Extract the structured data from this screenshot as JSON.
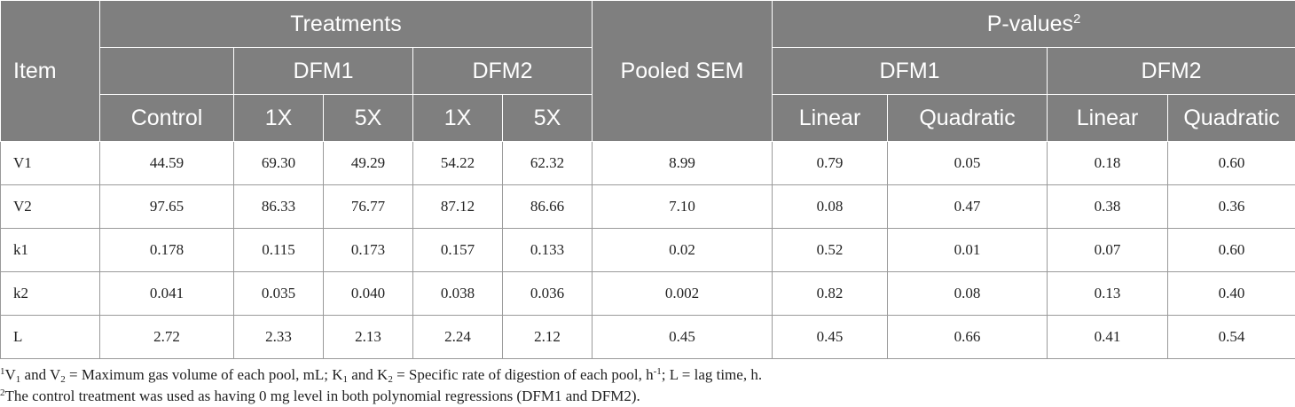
{
  "header": {
    "item": "Item",
    "treatments": "Treatments",
    "pooled_sem": "Pooled SEM",
    "pvalues": "P-values",
    "pvalues_sup": "2",
    "dfm1": "DFM1",
    "dfm2": "DFM2",
    "control": "Control",
    "x1": "1X",
    "x5": "5X",
    "linear": "Linear",
    "quadratic": "Quadratic"
  },
  "rows": [
    {
      "item": "V1",
      "control": "44.59",
      "dfm1_1x": "69.30",
      "dfm1_5x": "49.29",
      "dfm2_1x": "54.22",
      "dfm2_5x": "62.32",
      "sem": "8.99",
      "p_dfm1_lin": "0.79",
      "p_dfm1_quad": "0.05",
      "p_dfm2_lin": "0.18",
      "p_dfm2_quad": "0.60"
    },
    {
      "item": "V2",
      "control": "97.65",
      "dfm1_1x": "86.33",
      "dfm1_5x": "76.77",
      "dfm2_1x": "87.12",
      "dfm2_5x": "86.66",
      "sem": "7.10",
      "p_dfm1_lin": "0.08",
      "p_dfm1_quad": "0.47",
      "p_dfm2_lin": "0.38",
      "p_dfm2_quad": "0.36"
    },
    {
      "item": "k1",
      "control": "0.178",
      "dfm1_1x": "0.115",
      "dfm1_5x": "0.173",
      "dfm2_1x": "0.157",
      "dfm2_5x": "0.133",
      "sem": "0.02",
      "p_dfm1_lin": "0.52",
      "p_dfm1_quad": "0.01",
      "p_dfm2_lin": "0.07",
      "p_dfm2_quad": "0.60"
    },
    {
      "item": "k2",
      "control": "0.041",
      "dfm1_1x": "0.035",
      "dfm1_5x": "0.040",
      "dfm2_1x": "0.038",
      "dfm2_5x": "0.036",
      "sem": "0.002",
      "p_dfm1_lin": "0.82",
      "p_dfm1_quad": "0.08",
      "p_dfm2_lin": "0.13",
      "p_dfm2_quad": "0.40"
    },
    {
      "item": "L",
      "control": "2.72",
      "dfm1_1x": "2.33",
      "dfm1_5x": "2.13",
      "dfm2_1x": "2.24",
      "dfm2_5x": "2.12",
      "sem": "0.45",
      "p_dfm1_lin": "0.45",
      "p_dfm1_quad": "0.66",
      "p_dfm2_lin": "0.41",
      "p_dfm2_quad": "0.54"
    }
  ],
  "footnotes": {
    "n1": {
      "sup": "1",
      "v": "V",
      "s1": "1",
      "and1": " and V",
      "s2": "2",
      "t1": " = Maximum gas volume of each pool, mL; K",
      "s3": "1",
      "and2": " and K",
      "s4": "2",
      "t2": " = Specific rate of digestion of each pool, h",
      "exp": "-1",
      "t3": "; L = lag time, h."
    },
    "n2": {
      "sup": "2",
      "text": "The control treatment was used as having 0 mg level in both polynomial regressions (DFM1 and DFM2)."
    }
  }
}
